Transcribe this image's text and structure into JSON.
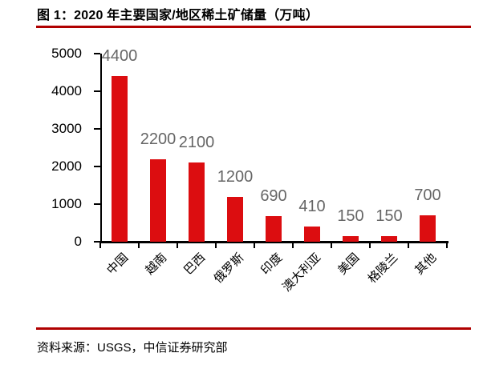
{
  "header": {
    "title": "图 1：2020 年主要国家/地区稀土矿储量（万吨）"
  },
  "footer": {
    "source": "资料来源：USGS，中信证券研究部"
  },
  "colors": {
    "bar": "#DC0D10",
    "rule": "#B00000",
    "data_label": "#666666",
    "axis": "#000000",
    "background": "#FFFFFF"
  },
  "chart_data": {
    "type": "bar",
    "title": "图 1：2020 年主要国家/地区稀土矿储量（万吨）",
    "unit": "万吨",
    "categories": [
      "中国",
      "越南",
      "巴西",
      "俄罗斯",
      "印度",
      "澳大利亚",
      "美国",
      "格陵兰",
      "其他"
    ],
    "values": [
      4400,
      2200,
      2100,
      1200,
      690,
      410,
      150,
      150,
      700
    ],
    "data_labels": [
      "4400",
      "2200",
      "2100",
      "1200",
      "690",
      "410",
      "150",
      "150",
      "700"
    ],
    "xlabel": "",
    "ylabel": "",
    "y_ticks": [
      0,
      1000,
      2000,
      3000,
      4000,
      5000
    ],
    "ylim": [
      0,
      5000
    ],
    "grid": false,
    "legend": "none",
    "bar_color": "#DC0D10",
    "category_label_rotation_deg": 45
  }
}
